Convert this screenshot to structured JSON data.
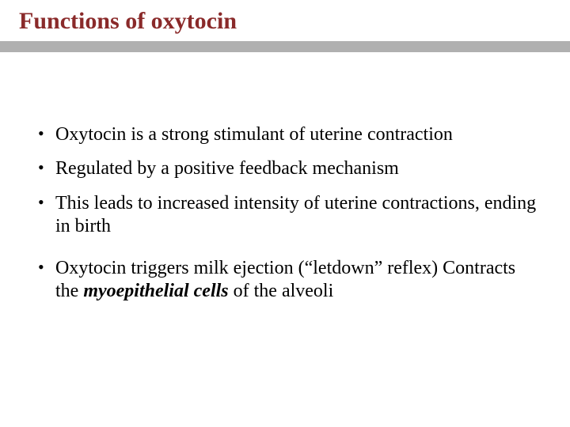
{
  "title": "Functions of oxytocin",
  "colors": {
    "title_color": "#8a2a2a",
    "divider_color": "#b0b0b0",
    "text_color": "#000000",
    "background": "#ffffff"
  },
  "typography": {
    "title_fontsize": 30,
    "body_fontsize": 24,
    "font_family": "Georgia, serif"
  },
  "bullets": [
    {
      "text": "Oxytocin is a strong stimulant of uterine contraction",
      "gap_before": false
    },
    {
      "text": "Regulated by a positive feedback mechanism",
      "gap_before": false
    },
    {
      "text": "This leads to increased intensity of uterine contractions, ending in birth",
      "gap_before": false
    },
    {
      "text_parts": [
        {
          "text": "Oxytocin triggers milk ejection (“letdown” reflex) Contracts the ",
          "style": "normal"
        },
        {
          "text": "myoepithelial cells",
          "style": "emph"
        },
        {
          "text": " of the alveoli",
          "style": "normal"
        }
      ],
      "gap_before": true
    }
  ]
}
